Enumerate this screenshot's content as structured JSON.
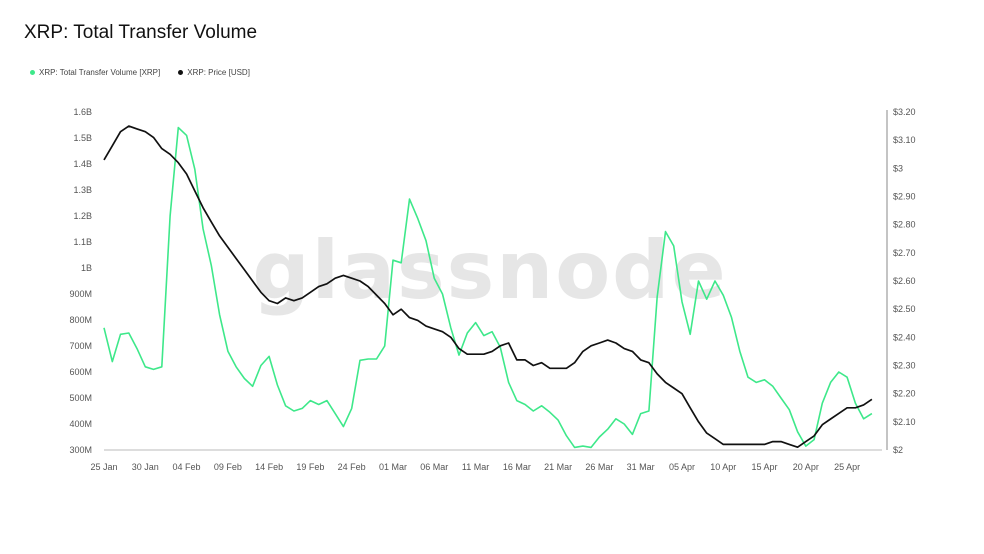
{
  "header": {
    "title": "XRP: Total Transfer Volume"
  },
  "legend": {
    "items": [
      {
        "label": "XRP: Total Transfer Volume [XRP]",
        "color": "#3ee88a"
      },
      {
        "label": "XRP: Price [USD]",
        "color": "#111111"
      }
    ]
  },
  "watermark": "glassnode",
  "chart_data": {
    "type": "line",
    "title": "XRP: Total Transfer Volume",
    "x_tick_labels": [
      "25 Jan",
      "30 Jan",
      "04 Feb",
      "09 Feb",
      "14 Feb",
      "19 Feb",
      "24 Feb",
      "01 Mar",
      "06 Mar",
      "11 Mar",
      "16 Mar",
      "21 Mar",
      "26 Mar",
      "31 Mar",
      "05 Apr",
      "10 Apr",
      "15 Apr",
      "20 Apr",
      "25 Apr"
    ],
    "x_tick_days": [
      0,
      5,
      10,
      15,
      20,
      25,
      30,
      35,
      40,
      45,
      50,
      55,
      60,
      65,
      70,
      75,
      80,
      85,
      90
    ],
    "y_left_ticks": [
      "300M",
      "400M",
      "500M",
      "600M",
      "700M",
      "800M",
      "900M",
      "1B",
      "1.1B",
      "1.2B",
      "1.3B",
      "1.4B",
      "1.5B",
      "1.6B"
    ],
    "y_left_range": [
      300,
      1600
    ],
    "y_right_ticks": [
      "$2",
      "$2.10",
      "$2.20",
      "$2.30",
      "$2.40",
      "$2.50",
      "$2.60",
      "$2.70",
      "$2.80",
      "$2.90",
      "$3",
      "$3.10",
      "$3.20"
    ],
    "y_right_range": [
      2.0,
      3.2
    ],
    "grid": false,
    "legend_position": "top-left",
    "series": [
      {
        "name": "XRP: Total Transfer Volume [XRP]",
        "axis": "left",
        "color": "#3ee88a",
        "points": [
          [
            0,
            770
          ],
          [
            1,
            640
          ],
          [
            2,
            745
          ],
          [
            3,
            750
          ],
          [
            4,
            690
          ],
          [
            5,
            620
          ],
          [
            6,
            610
          ],
          [
            7,
            620
          ],
          [
            8,
            1200
          ],
          [
            9,
            1540
          ],
          [
            10,
            1510
          ],
          [
            11,
            1380
          ],
          [
            12,
            1150
          ],
          [
            13,
            1010
          ],
          [
            14,
            820
          ],
          [
            15,
            680
          ],
          [
            16,
            620
          ],
          [
            17,
            575
          ],
          [
            18,
            545
          ],
          [
            19,
            625
          ],
          [
            20,
            660
          ],
          [
            21,
            550
          ],
          [
            22,
            470
          ],
          [
            23,
            450
          ],
          [
            24,
            460
          ],
          [
            25,
            490
          ],
          [
            26,
            475
          ],
          [
            27,
            490
          ],
          [
            28,
            440
          ],
          [
            29,
            390
          ],
          [
            30,
            460
          ],
          [
            31,
            645
          ],
          [
            32,
            650
          ],
          [
            33,
            650
          ],
          [
            34,
            700
          ],
          [
            35,
            1030
          ],
          [
            36,
            1020
          ],
          [
            37,
            1265
          ],
          [
            38,
            1190
          ],
          [
            39,
            1105
          ],
          [
            40,
            960
          ],
          [
            41,
            900
          ],
          [
            42,
            770
          ],
          [
            43,
            665
          ],
          [
            44,
            750
          ],
          [
            45,
            790
          ],
          [
            46,
            740
          ],
          [
            47,
            755
          ],
          [
            48,
            695
          ],
          [
            49,
            560
          ],
          [
            50,
            490
          ],
          [
            51,
            475
          ],
          [
            52,
            450
          ],
          [
            53,
            470
          ],
          [
            54,
            445
          ],
          [
            55,
            415
          ],
          [
            56,
            355
          ],
          [
            57,
            310
          ],
          [
            58,
            315
          ],
          [
            59,
            310
          ],
          [
            60,
            350
          ],
          [
            61,
            380
          ],
          [
            62,
            420
          ],
          [
            63,
            400
          ],
          [
            64,
            360
          ],
          [
            65,
            440
          ],
          [
            66,
            450
          ],
          [
            67,
            890
          ],
          [
            68,
            1140
          ],
          [
            69,
            1085
          ],
          [
            70,
            870
          ],
          [
            71,
            745
          ],
          [
            72,
            950
          ],
          [
            73,
            880
          ],
          [
            74,
            950
          ],
          [
            75,
            895
          ],
          [
            76,
            810
          ],
          [
            77,
            680
          ],
          [
            78,
            580
          ],
          [
            79,
            560
          ],
          [
            80,
            570
          ],
          [
            81,
            545
          ],
          [
            82,
            500
          ],
          [
            83,
            455
          ],
          [
            84,
            370
          ],
          [
            85,
            315
          ],
          [
            86,
            340
          ],
          [
            87,
            480
          ],
          [
            88,
            560
          ],
          [
            89,
            600
          ],
          [
            90,
            580
          ],
          [
            91,
            480
          ],
          [
            92,
            420
          ],
          [
            93,
            440
          ]
        ]
      },
      {
        "name": "XRP: Price [USD]",
        "axis": "right",
        "color": "#111111",
        "points": [
          [
            0,
            3.03
          ],
          [
            1,
            3.08
          ],
          [
            2,
            3.13
          ],
          [
            3,
            3.15
          ],
          [
            4,
            3.14
          ],
          [
            5,
            3.13
          ],
          [
            6,
            3.11
          ],
          [
            7,
            3.07
          ],
          [
            8,
            3.05
          ],
          [
            9,
            3.02
          ],
          [
            10,
            2.98
          ],
          [
            11,
            2.92
          ],
          [
            12,
            2.86
          ],
          [
            13,
            2.81
          ],
          [
            14,
            2.76
          ],
          [
            15,
            2.72
          ],
          [
            16,
            2.68
          ],
          [
            17,
            2.64
          ],
          [
            18,
            2.6
          ],
          [
            19,
            2.56
          ],
          [
            20,
            2.53
          ],
          [
            21,
            2.52
          ],
          [
            22,
            2.54
          ],
          [
            23,
            2.53
          ],
          [
            24,
            2.54
          ],
          [
            25,
            2.56
          ],
          [
            26,
            2.58
          ],
          [
            27,
            2.59
          ],
          [
            28,
            2.61
          ],
          [
            29,
            2.62
          ],
          [
            30,
            2.61
          ],
          [
            31,
            2.6
          ],
          [
            32,
            2.58
          ],
          [
            33,
            2.55
          ],
          [
            34,
            2.52
          ],
          [
            35,
            2.48
          ],
          [
            36,
            2.5
          ],
          [
            37,
            2.47
          ],
          [
            38,
            2.46
          ],
          [
            39,
            2.44
          ],
          [
            40,
            2.43
          ],
          [
            41,
            2.42
          ],
          [
            42,
            2.4
          ],
          [
            43,
            2.36
          ],
          [
            44,
            2.34
          ],
          [
            45,
            2.34
          ],
          [
            46,
            2.34
          ],
          [
            47,
            2.35
          ],
          [
            48,
            2.37
          ],
          [
            49,
            2.38
          ],
          [
            50,
            2.32
          ],
          [
            51,
            2.32
          ],
          [
            52,
            2.3
          ],
          [
            53,
            2.31
          ],
          [
            54,
            2.29
          ],
          [
            55,
            2.29
          ],
          [
            56,
            2.29
          ],
          [
            57,
            2.31
          ],
          [
            58,
            2.35
          ],
          [
            59,
            2.37
          ],
          [
            60,
            2.38
          ],
          [
            61,
            2.39
          ],
          [
            62,
            2.38
          ],
          [
            63,
            2.36
          ],
          [
            64,
            2.35
          ],
          [
            65,
            2.32
          ],
          [
            66,
            2.31
          ],
          [
            67,
            2.27
          ],
          [
            68,
            2.24
          ],
          [
            69,
            2.22
          ],
          [
            70,
            2.2
          ],
          [
            71,
            2.15
          ],
          [
            72,
            2.1
          ],
          [
            73,
            2.06
          ],
          [
            74,
            2.04
          ],
          [
            75,
            2.02
          ],
          [
            76,
            2.02
          ],
          [
            77,
            2.02
          ],
          [
            78,
            2.02
          ],
          [
            79,
            2.02
          ],
          [
            80,
            2.02
          ],
          [
            81,
            2.03
          ],
          [
            82,
            2.03
          ],
          [
            83,
            2.02
          ],
          [
            84,
            2.01
          ],
          [
            85,
            2.03
          ],
          [
            86,
            2.05
          ],
          [
            87,
            2.09
          ],
          [
            88,
            2.11
          ],
          [
            89,
            2.13
          ],
          [
            90,
            2.15
          ],
          [
            91,
            2.15
          ],
          [
            92,
            2.16
          ],
          [
            93,
            2.18
          ]
        ]
      }
    ]
  }
}
